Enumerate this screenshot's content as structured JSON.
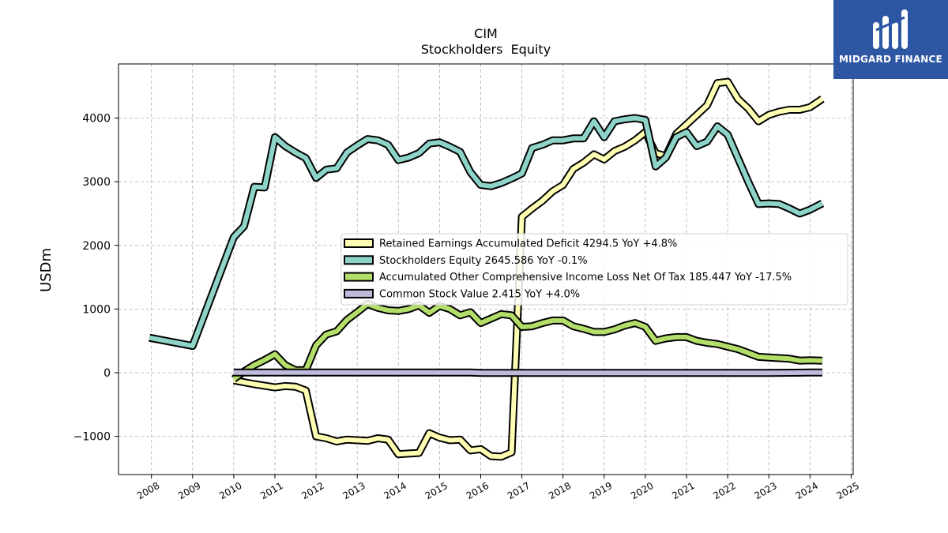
{
  "brand": {
    "name": "MIDGARD FINANCE",
    "color": "#2d56a3"
  },
  "chart_data": {
    "type": "line",
    "title": "CIM",
    "subtitle": "Stockholders  Equity",
    "ylabel": "USDm",
    "xlabel": "",
    "xlim": [
      2007.2,
      2025.05
    ],
    "ylim": [
      -1600,
      4850
    ],
    "grid": true,
    "legend_position": "center-right",
    "x_ticks": [
      2008,
      2009,
      2010,
      2011,
      2012,
      2013,
      2014,
      2015,
      2016,
      2017,
      2018,
      2019,
      2020,
      2021,
      2022,
      2023,
      2024,
      2025
    ],
    "y_ticks": [
      -1000,
      0,
      1000,
      2000,
      3000,
      4000
    ],
    "series": [
      {
        "name": "Retained Earnings Accumulated Deficit",
        "legend": "Retained Earnings Accumulated Deficit  4294.5 YoY +4.8%",
        "color": "#ffffb3",
        "points": [
          [
            2010.0,
            -120
          ],
          [
            2010.5,
            -180
          ],
          [
            2011.0,
            -230
          ],
          [
            2011.25,
            -210
          ],
          [
            2011.5,
            -220
          ],
          [
            2011.75,
            -280
          ],
          [
            2012.0,
            -1000
          ],
          [
            2012.25,
            -1030
          ],
          [
            2012.5,
            -1080
          ],
          [
            2012.75,
            -1050
          ],
          [
            2013.0,
            -1060
          ],
          [
            2013.25,
            -1070
          ],
          [
            2013.5,
            -1030
          ],
          [
            2013.75,
            -1050
          ],
          [
            2014.0,
            -1280
          ],
          [
            2014.25,
            -1270
          ],
          [
            2014.5,
            -1260
          ],
          [
            2014.75,
            -950
          ],
          [
            2015.0,
            -1020
          ],
          [
            2015.25,
            -1060
          ],
          [
            2015.5,
            -1050
          ],
          [
            2015.75,
            -1220
          ],
          [
            2016.0,
            -1200
          ],
          [
            2016.25,
            -1310
          ],
          [
            2016.5,
            -1320
          ],
          [
            2016.75,
            -1250
          ],
          [
            2017.0,
            2450
          ],
          [
            2017.25,
            2580
          ],
          [
            2017.5,
            2700
          ],
          [
            2017.75,
            2850
          ],
          [
            2018.0,
            2950
          ],
          [
            2018.25,
            3200
          ],
          [
            2018.5,
            3300
          ],
          [
            2018.75,
            3430
          ],
          [
            2019.0,
            3350
          ],
          [
            2019.25,
            3480
          ],
          [
            2019.5,
            3550
          ],
          [
            2019.75,
            3650
          ],
          [
            2020.0,
            3780
          ],
          [
            2020.25,
            3450
          ],
          [
            2020.5,
            3400
          ],
          [
            2020.75,
            3750
          ],
          [
            2021.0,
            3900
          ],
          [
            2021.25,
            4050
          ],
          [
            2021.5,
            4200
          ],
          [
            2021.75,
            4550
          ],
          [
            2022.0,
            4570
          ],
          [
            2022.25,
            4300
          ],
          [
            2022.5,
            4150
          ],
          [
            2022.75,
            3950
          ],
          [
            2023.0,
            4050
          ],
          [
            2023.25,
            4100
          ],
          [
            2023.5,
            4130
          ],
          [
            2023.75,
            4130
          ],
          [
            2024.0,
            4170
          ],
          [
            2024.3,
            4300
          ]
        ]
      },
      {
        "name": "Stockholders Equity",
        "legend": "Stockholders Equity  2645.586 YoY -0.1%",
        "color": "#8dd3c7",
        "points": [
          [
            2007.95,
            550
          ],
          [
            2009.0,
            420
          ],
          [
            2010.0,
            2130
          ],
          [
            2010.25,
            2300
          ],
          [
            2010.5,
            2920
          ],
          [
            2010.75,
            2910
          ],
          [
            2011.0,
            3700
          ],
          [
            2011.25,
            3560
          ],
          [
            2011.5,
            3460
          ],
          [
            2011.75,
            3370
          ],
          [
            2012.0,
            3060
          ],
          [
            2012.25,
            3190
          ],
          [
            2012.5,
            3210
          ],
          [
            2012.75,
            3460
          ],
          [
            2013.0,
            3570
          ],
          [
            2013.25,
            3670
          ],
          [
            2013.5,
            3650
          ],
          [
            2013.75,
            3580
          ],
          [
            2014.0,
            3340
          ],
          [
            2014.25,
            3380
          ],
          [
            2014.5,
            3450
          ],
          [
            2014.75,
            3600
          ],
          [
            2015.0,
            3620
          ],
          [
            2015.25,
            3550
          ],
          [
            2015.5,
            3470
          ],
          [
            2015.75,
            3150
          ],
          [
            2016.0,
            2950
          ],
          [
            2016.25,
            2930
          ],
          [
            2016.5,
            2980
          ],
          [
            2016.75,
            3050
          ],
          [
            2017.0,
            3130
          ],
          [
            2017.25,
            3530
          ],
          [
            2017.5,
            3580
          ],
          [
            2017.75,
            3650
          ],
          [
            2018.0,
            3650
          ],
          [
            2018.25,
            3680
          ],
          [
            2018.5,
            3680
          ],
          [
            2018.75,
            3950
          ],
          [
            2019.0,
            3700
          ],
          [
            2019.25,
            3950
          ],
          [
            2019.5,
            3980
          ],
          [
            2019.75,
            4000
          ],
          [
            2020.0,
            3970
          ],
          [
            2020.25,
            3240
          ],
          [
            2020.5,
            3380
          ],
          [
            2020.75,
            3700
          ],
          [
            2021.0,
            3780
          ],
          [
            2021.25,
            3560
          ],
          [
            2021.5,
            3630
          ],
          [
            2021.75,
            3870
          ],
          [
            2022.0,
            3740
          ],
          [
            2022.25,
            3370
          ],
          [
            2022.5,
            3000
          ],
          [
            2022.75,
            2650
          ],
          [
            2023.0,
            2660
          ],
          [
            2023.25,
            2650
          ],
          [
            2023.5,
            2580
          ],
          [
            2023.75,
            2500
          ],
          [
            2024.0,
            2560
          ],
          [
            2024.3,
            2660
          ]
        ]
      },
      {
        "name": "Accumulated Other Comprehensive Income Loss Net Of Tax",
        "legend": "Accumulated Other Comprehensive Income Loss Net Of Tax  185.447 YoY -17.5%",
        "color": "#b3de69",
        "points": [
          [
            2010.0,
            -100
          ],
          [
            2010.25,
            20
          ],
          [
            2010.5,
            120
          ],
          [
            2010.75,
            200
          ],
          [
            2011.0,
            290
          ],
          [
            2011.25,
            120
          ],
          [
            2011.5,
            40
          ],
          [
            2011.75,
            40
          ],
          [
            2012.0,
            430
          ],
          [
            2012.25,
            600
          ],
          [
            2012.5,
            650
          ],
          [
            2012.75,
            830
          ],
          [
            2013.0,
            950
          ],
          [
            2013.25,
            1080
          ],
          [
            2013.5,
            1020
          ],
          [
            2013.75,
            980
          ],
          [
            2014.0,
            970
          ],
          [
            2014.25,
            1000
          ],
          [
            2014.5,
            1060
          ],
          [
            2014.75,
            940
          ],
          [
            2015.0,
            1050
          ],
          [
            2015.25,
            1000
          ],
          [
            2015.5,
            900
          ],
          [
            2015.75,
            950
          ],
          [
            2016.0,
            780
          ],
          [
            2016.25,
            850
          ],
          [
            2016.5,
            920
          ],
          [
            2016.75,
            900
          ],
          [
            2017.0,
            720
          ],
          [
            2017.25,
            730
          ],
          [
            2017.5,
            780
          ],
          [
            2017.75,
            820
          ],
          [
            2018.0,
            820
          ],
          [
            2018.25,
            730
          ],
          [
            2018.5,
            690
          ],
          [
            2018.75,
            640
          ],
          [
            2019.0,
            640
          ],
          [
            2019.25,
            680
          ],
          [
            2019.5,
            740
          ],
          [
            2019.75,
            780
          ],
          [
            2020.0,
            720
          ],
          [
            2020.25,
            500
          ],
          [
            2020.5,
            540
          ],
          [
            2020.75,
            560
          ],
          [
            2021.0,
            560
          ],
          [
            2021.25,
            500
          ],
          [
            2021.5,
            470
          ],
          [
            2021.75,
            450
          ],
          [
            2022.0,
            410
          ],
          [
            2022.25,
            370
          ],
          [
            2022.5,
            310
          ],
          [
            2022.75,
            250
          ],
          [
            2023.0,
            240
          ],
          [
            2023.25,
            230
          ],
          [
            2023.5,
            220
          ],
          [
            2023.75,
            190
          ],
          [
            2024.0,
            195
          ],
          [
            2024.3,
            190
          ]
        ]
      },
      {
        "name": "Common Stock Value",
        "legend": "Common Stock Value  2.415 YoY +4.0%",
        "color": "#bebada",
        "points": [
          [
            2010.0,
            2
          ],
          [
            2010.5,
            2
          ],
          [
            2011.0,
            2
          ],
          [
            2012.0,
            2
          ],
          [
            2013.0,
            2
          ],
          [
            2014.0,
            2
          ],
          [
            2015.0,
            2
          ],
          [
            2015.75,
            2
          ],
          [
            2016.0,
            -2
          ],
          [
            2017.0,
            -2
          ],
          [
            2018.0,
            -2
          ],
          [
            2019.0,
            -2
          ],
          [
            2020.0,
            -2
          ],
          [
            2021.0,
            -2
          ],
          [
            2022.0,
            -2
          ],
          [
            2023.0,
            -2
          ],
          [
            2024.0,
            2
          ],
          [
            2024.3,
            2.4
          ]
        ]
      }
    ]
  }
}
